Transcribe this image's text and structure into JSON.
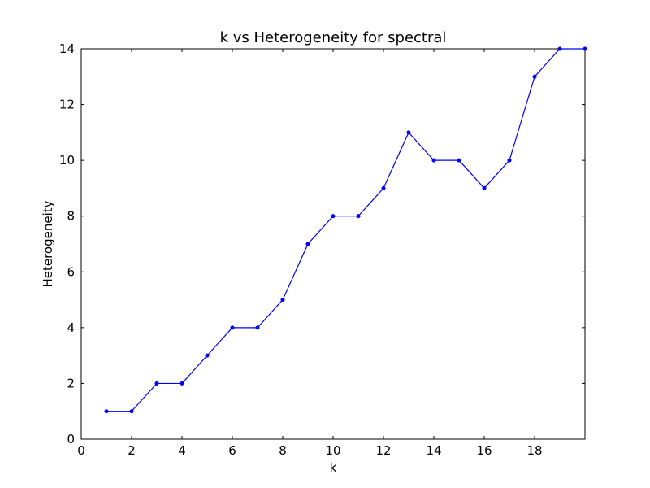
{
  "chart_data": {
    "type": "line",
    "title": "k vs Heterogeneity for spectral",
    "xlabel": "k",
    "ylabel": "Heterogeneity",
    "xlim": [
      0,
      20
    ],
    "ylim": [
      0,
      14
    ],
    "xticks": [
      0,
      2,
      4,
      6,
      8,
      10,
      12,
      14,
      16,
      18
    ],
    "yticks": [
      0,
      2,
      4,
      6,
      8,
      10,
      12,
      14
    ],
    "grid": false,
    "colors": {
      "series": "#0000ff",
      "frame": "#000000"
    },
    "series": [
      {
        "x": [
          1,
          2,
          3,
          4,
          5,
          6,
          7,
          8,
          9,
          10,
          11,
          12,
          13,
          14,
          15,
          16,
          17,
          18,
          19,
          20
        ],
        "y": [
          1,
          1,
          2,
          2,
          3,
          4,
          4,
          5,
          7,
          8,
          8,
          9,
          11,
          10,
          10,
          9,
          10,
          13,
          14,
          14
        ]
      }
    ]
  }
}
